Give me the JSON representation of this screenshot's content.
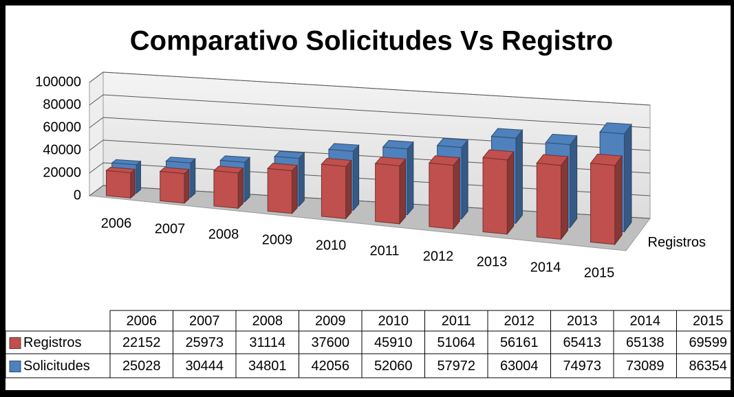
{
  "chart_data": {
    "type": "bar3d",
    "title": "Comparativo Solicitudes Vs Registro",
    "categories": [
      "2006",
      "2007",
      "2008",
      "2009",
      "2010",
      "2011",
      "2012",
      "2013",
      "2014",
      "2015"
    ],
    "series": [
      {
        "name": "Registros",
        "color": "#c0504d",
        "values": [
          22152,
          25973,
          31114,
          37600,
          45910,
          51064,
          56161,
          65413,
          65138,
          69599
        ]
      },
      {
        "name": "Solicitudes",
        "color": "#4f81bd",
        "values": [
          25028,
          30444,
          34801,
          42056,
          52060,
          57972,
          63004,
          74973,
          73089,
          86354
        ]
      }
    ],
    "depth_tick_label": "Registros",
    "ylim": [
      0,
      100000
    ],
    "yticks": [
      0,
      20000,
      40000,
      60000,
      80000,
      100000
    ],
    "grid": true,
    "data_table": true
  }
}
